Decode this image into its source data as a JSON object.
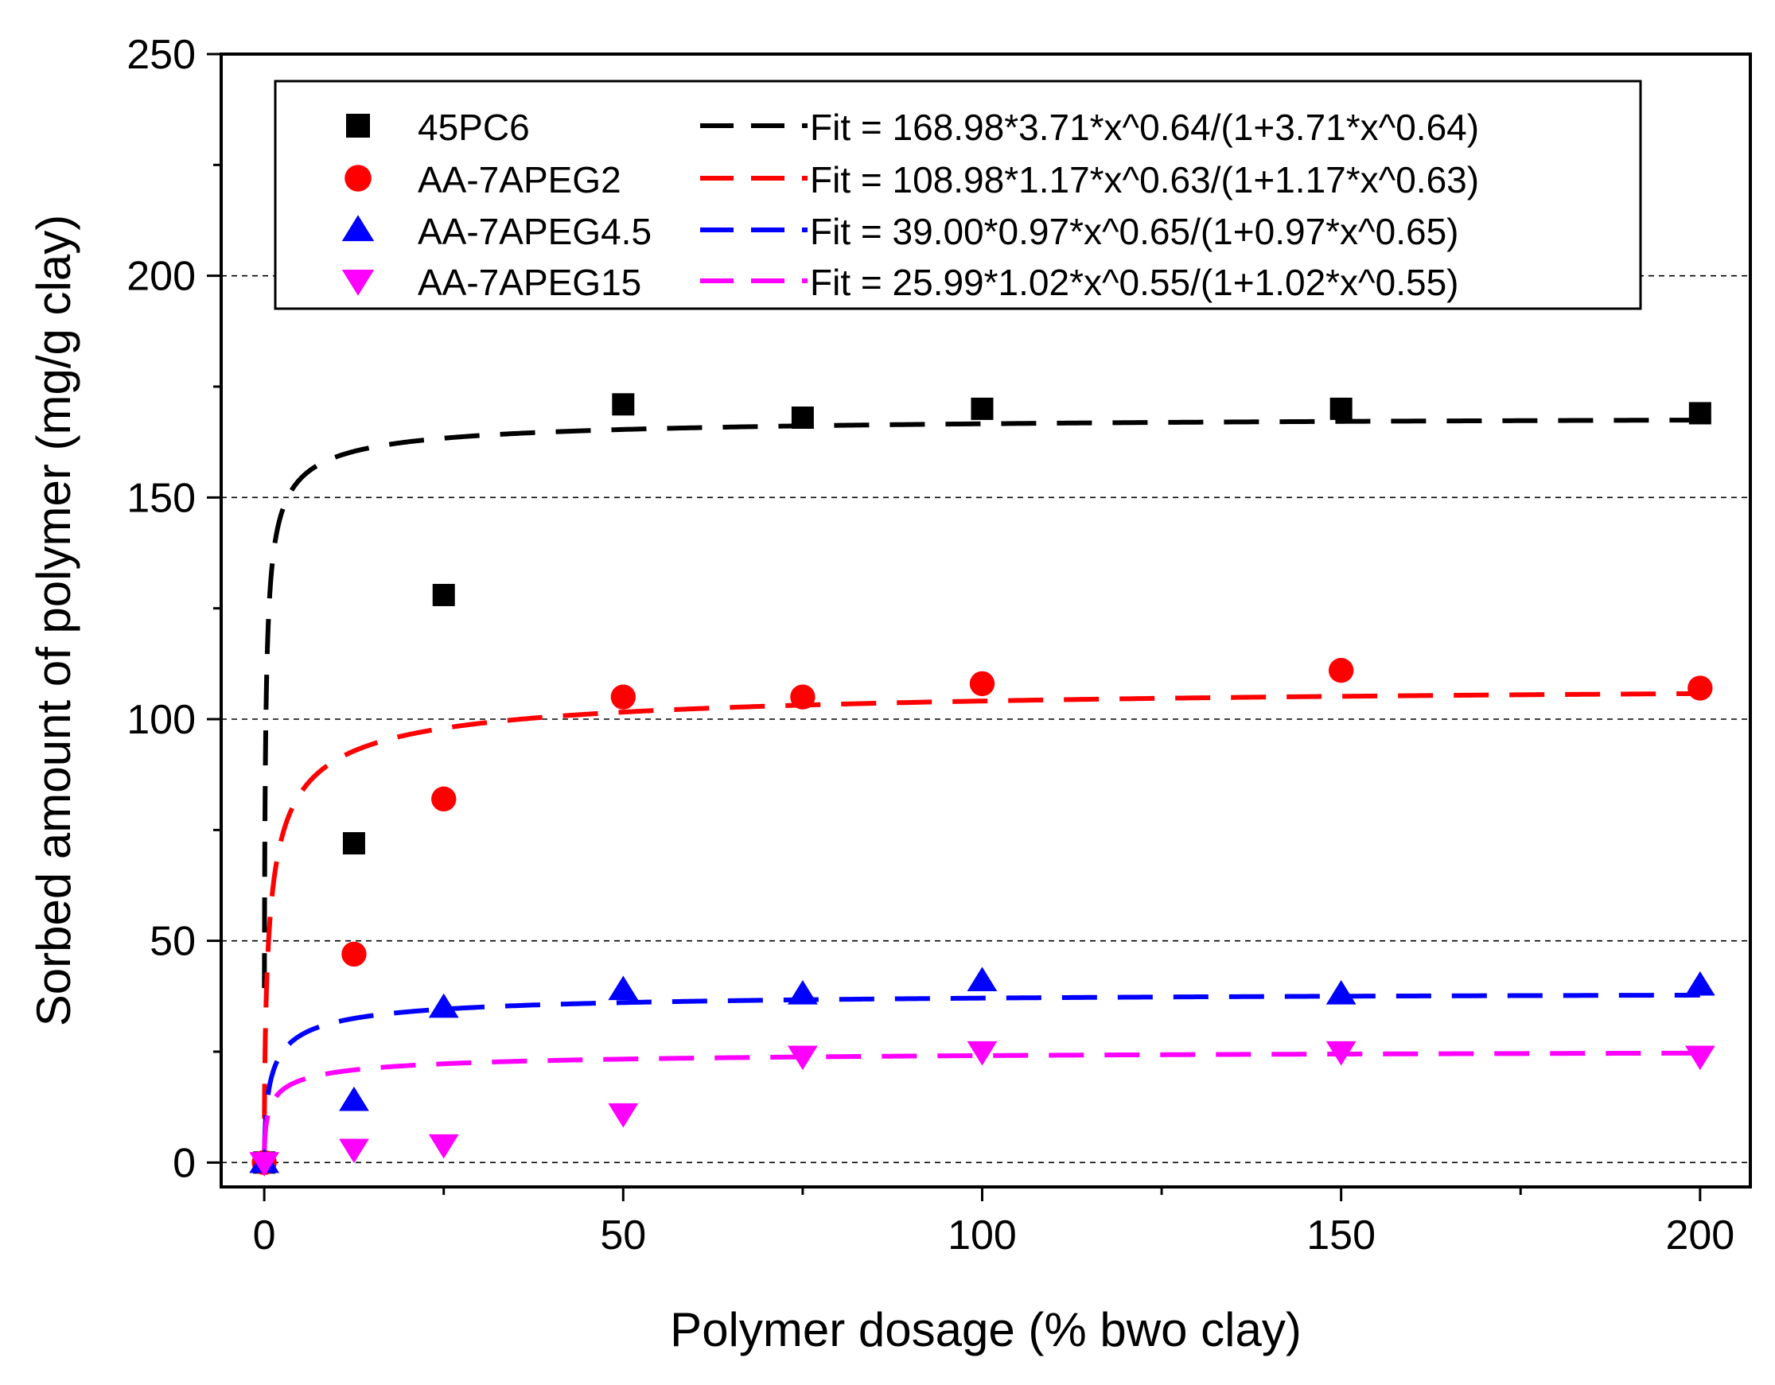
{
  "chart_data": {
    "type": "scatter",
    "xlabel": "Polymer dosage (% bwo clay)",
    "ylabel": "Sorbed amount of polymer (mg/g clay)",
    "xlim": [
      -6,
      207
    ],
    "ylim": [
      -5.5,
      250
    ],
    "xticks": [
      0,
      50,
      100,
      150,
      200
    ],
    "yticks": [
      0,
      50,
      100,
      150,
      200,
      250
    ],
    "x_minor_ticks": [
      25,
      75,
      125,
      175
    ],
    "y_minor_ticks": [
      25,
      75,
      125,
      175,
      225
    ],
    "grid": {
      "y_major_dashed": true
    },
    "legend_position": "top",
    "series": [
      {
        "name": "45PC6",
        "marker": "square",
        "color": "#000000",
        "x": [
          0,
          12.5,
          25,
          50,
          75,
          100,
          150,
          200
        ],
        "y": [
          0,
          72,
          128,
          171,
          168,
          170,
          170,
          169
        ],
        "fit": {
          "label": "Fit = 168.98*3.71*x^0.64/(1+3.71*x^0.64)",
          "qmax": 168.98,
          "k": 3.71,
          "n": 0.64
        }
      },
      {
        "name": "AA-7APEG2",
        "marker": "circle",
        "color": "#ff0000",
        "x": [
          0,
          12.5,
          25,
          50,
          75,
          100,
          150,
          200
        ],
        "y": [
          0,
          47,
          82,
          105,
          105,
          108,
          111,
          107
        ],
        "fit": {
          "label": "Fit = 108.98*1.17*x^0.63/(1+1.17*x^0.63)",
          "qmax": 108.98,
          "k": 1.17,
          "n": 0.63
        }
      },
      {
        "name": "AA-7APEG4.5",
        "marker": "triangle-up",
        "color": "#0000ff",
        "x": [
          0,
          12.5,
          25,
          50,
          75,
          100,
          150,
          200
        ],
        "y": [
          0,
          14,
          35,
          39,
          38,
          41,
          38,
          40
        ],
        "fit": {
          "label": "Fit = 39.00*0.97*x^0.65/(1+0.97*x^0.65)",
          "qmax": 39.0,
          "k": 0.97,
          "n": 0.65
        }
      },
      {
        "name": "AA-7APEG15",
        "marker": "triangle-down",
        "color": "#ff00ff",
        "x": [
          0,
          12.5,
          25,
          50,
          75,
          100,
          150,
          200
        ],
        "y": [
          0,
          3,
          4,
          11,
          24,
          25,
          25,
          24
        ],
        "fit": {
          "label": "Fit = 25.99*1.02*x^0.55/(1+1.02*x^0.55)",
          "qmax": 25.99,
          "k": 1.02,
          "n": 0.55
        }
      }
    ]
  }
}
